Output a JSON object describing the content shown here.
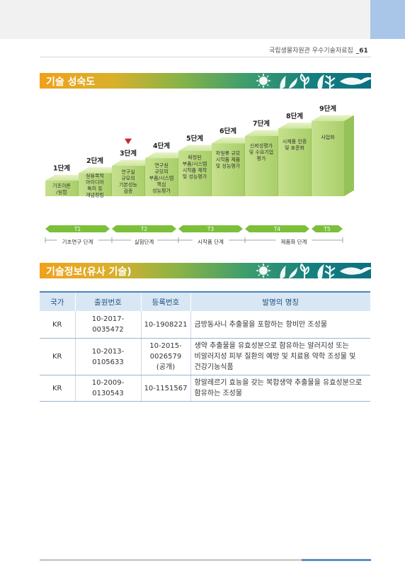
{
  "header": {
    "text": "국립생물자원관 우수기술자료집",
    "page": "61"
  },
  "sections": {
    "maturity_title": "기술 성숙도",
    "info_title": "기술정보(유사 기술)"
  },
  "maturity": {
    "stages": [
      {
        "label": "1단계",
        "desc": [
          "기초이론",
          "/실험"
        ]
      },
      {
        "label": "2단계",
        "desc": [
          "실용목적",
          "아이디어",
          "특허 등",
          "개념정립"
        ]
      },
      {
        "label": "3단계",
        "desc": [
          "연구실",
          "규모의",
          "기본성능",
          "검증"
        ]
      },
      {
        "label": "4단계",
        "desc": [
          "연구실",
          "규모의",
          "부품/시스템",
          "핵심",
          "성능평가"
        ]
      },
      {
        "label": "5단계",
        "desc": [
          "확정된",
          "부품/시스템",
          "시작품 제작",
          "및 성능평가"
        ]
      },
      {
        "label": "6단계",
        "desc": [
          "파일롯 규모",
          "시작품 제품",
          "및 성능평가"
        ]
      },
      {
        "label": "7단계",
        "desc": [
          "신뢰성평가",
          "및 수요기업",
          "평가"
        ]
      },
      {
        "label": "8단계",
        "desc": [
          "시제품 인증",
          "및 표준화"
        ]
      },
      {
        "label": "9단계",
        "desc": [
          "사업화"
        ]
      }
    ],
    "current_stage": 3,
    "tiers": [
      "T1",
      "T2",
      "T3",
      "T4",
      "T5"
    ],
    "phases": [
      "기초연구 단계",
      "실험단계",
      "시작품 단계",
      "제품화 단계"
    ]
  },
  "table": {
    "headers": [
      "국가",
      "출원번호",
      "등록번호",
      "발명의 명칭"
    ],
    "rows": [
      {
        "country": "KR",
        "app_no": [
          "10-2017-",
          "0035472"
        ],
        "reg_no": [
          "10-1908221"
        ],
        "title": [
          "금방동사니 추출물을 포함하는 항비만 조성물"
        ]
      },
      {
        "country": "KR",
        "app_no": [
          "10-2013-",
          "0105633"
        ],
        "reg_no": [
          "10-2015-",
          "0026579",
          "(공개)"
        ],
        "title": [
          "생약 추출물을 유효성분으로 함유하는 알러지성 또는",
          "비알러지성 피부 질환의 예방 및 치료용 약학 조성물 및",
          "건강기능식품"
        ]
      },
      {
        "country": "KR",
        "app_no": [
          "10-2009-",
          "0130543"
        ],
        "reg_no": [
          "10-1151567"
        ],
        "title": [
          "항알레르기 효능을 갖는 복합생약 추출물을 유효성분으로",
          "함유하는 조성물"
        ]
      }
    ]
  }
}
